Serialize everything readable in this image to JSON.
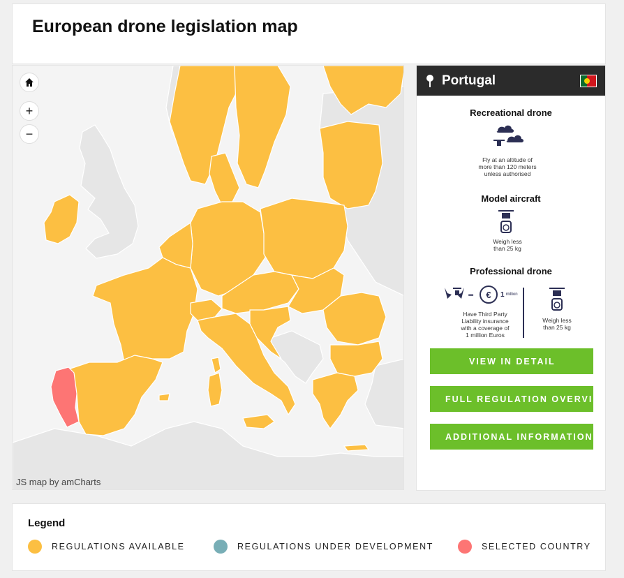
{
  "page": {
    "title": "European drone legislation map"
  },
  "map": {
    "credit": "JS map by amCharts",
    "colors": {
      "available": "#fcbf42",
      "selected": "#fd7574",
      "other": "#e6e6e6",
      "sea": "#f4f4f4"
    },
    "controls": {
      "home_icon": "home-icon",
      "zoom_in": "+",
      "zoom_out": "−"
    }
  },
  "detail": {
    "country": "Portugal",
    "recreational": {
      "title": "Recreational drone",
      "text_1": "Fly at an altitude of",
      "text_2": "more than 120 meters",
      "text_3": "unless authorised"
    },
    "model": {
      "title": "Model aircraft",
      "text_1": "Weigh less",
      "text_2": "than 25 kg"
    },
    "professional": {
      "title": "Professional drone",
      "insurance_amount": "1",
      "insurance_unit": "million",
      "ins_1": "Have Third Party",
      "ins_2": "Liability insurance",
      "ins_3": "with a coverage of",
      "ins_4": "1 million Euros",
      "w_1": "Weigh less",
      "w_2": "than 25 kg"
    },
    "buttons": {
      "detail": "VIEW IN DETAIL",
      "overview": "FULL REGULATION OVERVIEW",
      "additional": "ADDITIONAL INFORMATION"
    }
  },
  "legend": {
    "title": "Legend",
    "items": [
      {
        "label": "REGULATIONS AVAILABLE",
        "color": "#fcbf42"
      },
      {
        "label": "REGULATIONS UNDER DEVELOPMENT",
        "color": "#78aeb6"
      },
      {
        "label": "SELECTED COUNTRY",
        "color": "#fd7574"
      }
    ]
  }
}
